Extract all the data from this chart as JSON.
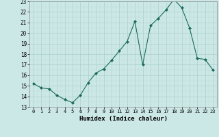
{
  "x": [
    0,
    1,
    2,
    3,
    4,
    5,
    6,
    7,
    8,
    9,
    10,
    11,
    12,
    13,
    14,
    15,
    16,
    17,
    18,
    19,
    20,
    21,
    22,
    23
  ],
  "y": [
    15.2,
    14.8,
    14.7,
    14.1,
    13.7,
    13.4,
    14.1,
    15.3,
    16.2,
    16.6,
    17.4,
    18.3,
    19.2,
    21.1,
    17.0,
    20.7,
    21.4,
    22.2,
    23.2,
    22.4,
    20.5,
    17.6,
    17.5,
    16.5
  ],
  "xlabel": "Humidex (Indice chaleur)",
  "ylim": [
    13,
    23
  ],
  "xlim": [
    -0.5,
    23.5
  ],
  "yticks": [
    13,
    14,
    15,
    16,
    17,
    18,
    19,
    20,
    21,
    22,
    23
  ],
  "xticks": [
    0,
    1,
    2,
    3,
    4,
    5,
    6,
    7,
    8,
    9,
    10,
    11,
    12,
    13,
    14,
    15,
    16,
    17,
    18,
    19,
    20,
    21,
    22,
    23
  ],
  "line_color": "#1a6b5e",
  "marker": "D",
  "marker_size": 2.0,
  "bg_color": "#cce8e6",
  "grid_major_color": "#aacfcc",
  "grid_minor_color": "#bbdbd8"
}
